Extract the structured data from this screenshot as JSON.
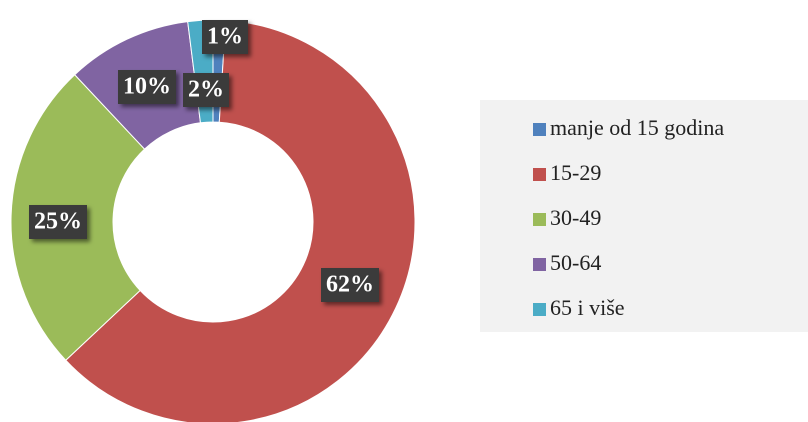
{
  "chart_data": {
    "type": "donut",
    "categories": [
      "manje od 15 godina",
      "15-29",
      "30-49",
      "50-64",
      "65 i više"
    ],
    "values": [
      1,
      62,
      25,
      10,
      2
    ],
    "value_labels": [
      "1%",
      "62%",
      "25%",
      "10%",
      "2%"
    ],
    "colors": [
      "#4f81bd",
      "#c0504d",
      "#9bbb59",
      "#8064a2",
      "#4bacc6"
    ],
    "legend": "right"
  }
}
